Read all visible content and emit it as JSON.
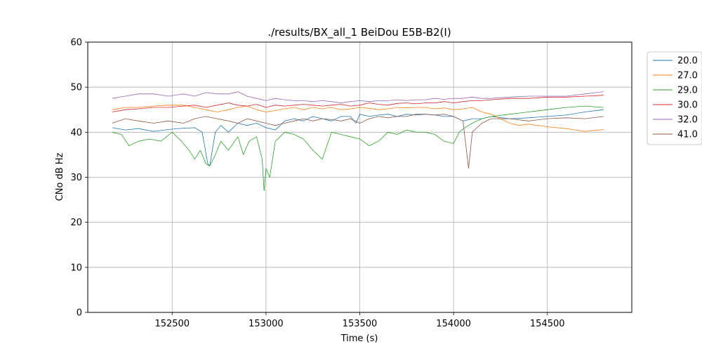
{
  "chart_data": {
    "type": "line",
    "title": "./results/BX_all_1 BeiDou E5B-B2(I)",
    "xlabel": "Time (s)",
    "ylabel": "CNo dB Hz",
    "xlim": [
      152050,
      154950
    ],
    "ylim": [
      0,
      60
    ],
    "xticks": [
      152500,
      153000,
      153500,
      154000,
      154500
    ],
    "yticks": [
      0,
      10,
      20,
      30,
      40,
      50,
      60
    ],
    "grid": true,
    "legend_position": "right-outside",
    "series": [
      {
        "name": "20.0",
        "color": "#1f77b4",
        "x": [
          152180,
          152250,
          152320,
          152400,
          152480,
          152560,
          152620,
          152660,
          152690,
          152700,
          152730,
          152760,
          152800,
          152850,
          152900,
          152950,
          153000,
          153050,
          153100,
          153150,
          153200,
          153250,
          153300,
          153350,
          153400,
          153450,
          153480,
          153500,
          153550,
          153600,
          153650,
          153700,
          153750,
          153800,
          153850,
          153900,
          153950,
          154000,
          154050,
          154100,
          154150,
          154200,
          154300,
          154400,
          154500,
          154600,
          154700,
          154800
        ],
        "y": [
          41.0,
          40.5,
          40.8,
          40.2,
          40.6,
          40.9,
          41.0,
          40.0,
          33.0,
          32.5,
          40.0,
          41.5,
          40.0,
          42.0,
          41.5,
          42.0,
          41.0,
          40.5,
          42.5,
          43.0,
          42.5,
          43.5,
          43.0,
          42.5,
          43.5,
          43.5,
          42.0,
          44.0,
          43.5,
          43.8,
          44.0,
          43.5,
          44.0,
          43.8,
          44.0,
          43.8,
          43.5,
          43.5,
          42.5,
          43.0,
          43.0,
          43.5,
          43.0,
          43.2,
          43.5,
          43.8,
          44.5,
          45.0
        ]
      },
      {
        "name": "27.0",
        "color": "#ff7f0e",
        "x": [
          152180,
          152250,
          152320,
          152400,
          152480,
          152560,
          152620,
          152680,
          152740,
          152800,
          152850,
          152900,
          152950,
          153000,
          153050,
          153100,
          153150,
          153200,
          153250,
          153300,
          153350,
          153400,
          153450,
          153500,
          153550,
          153600,
          153650,
          153700,
          153750,
          153800,
          153850,
          153900,
          153950,
          154000,
          154050,
          154100,
          154150,
          154200,
          154250,
          154300,
          154350,
          154400,
          154450,
          154500,
          154550,
          154600,
          154650,
          154700,
          154750,
          154800
        ],
        "y": [
          45.0,
          45.5,
          45.5,
          45.8,
          46.0,
          46.0,
          45.5,
          45.0,
          44.5,
          45.0,
          45.5,
          45.8,
          45.0,
          44.5,
          44.8,
          45.2,
          45.5,
          45.0,
          45.5,
          45.2,
          45.5,
          45.0,
          45.2,
          45.5,
          45.3,
          45.0,
          45.2,
          45.5,
          45.4,
          45.5,
          45.5,
          45.2,
          45.4,
          45.0,
          45.2,
          45.5,
          44.5,
          44.0,
          43.0,
          42.0,
          41.5,
          41.8,
          41.5,
          41.2,
          41.0,
          40.8,
          40.5,
          40.2,
          40.4,
          40.6
        ]
      },
      {
        "name": "29.0",
        "color": "#2ca02c",
        "x": [
          152180,
          152230,
          152270,
          152320,
          152380,
          152440,
          152500,
          152550,
          152590,
          152620,
          152650,
          152680,
          152700,
          152730,
          152760,
          152800,
          152850,
          152880,
          152910,
          152950,
          152980,
          152990,
          153000,
          153020,
          153050,
          153100,
          153150,
          153200,
          153250,
          153300,
          153350,
          153400,
          153450,
          153500,
          153550,
          153600,
          153650,
          153700,
          153750,
          153800,
          153850,
          153900,
          153950,
          154000,
          154030,
          154060,
          154100,
          154150,
          154200,
          154300,
          154400,
          154500,
          154600,
          154700,
          154800
        ],
        "y": [
          40.0,
          39.5,
          37.0,
          38.0,
          38.5,
          38.0,
          40.0,
          38.0,
          36.0,
          34.0,
          36.0,
          33.0,
          32.5,
          35.0,
          38.0,
          36.0,
          39.0,
          35.0,
          38.0,
          39.0,
          34.0,
          27.0,
          32.0,
          30.0,
          38.0,
          40.0,
          39.5,
          38.5,
          36.0,
          34.0,
          40.0,
          39.5,
          39.0,
          38.5,
          37.0,
          38.0,
          40.0,
          39.5,
          40.5,
          40.0,
          40.0,
          39.5,
          38.0,
          37.5,
          40.0,
          41.0,
          42.0,
          43.0,
          43.5,
          44.0,
          44.5,
          45.0,
          45.5,
          45.8,
          45.5
        ]
      },
      {
        "name": "30.0",
        "color": "#d62728",
        "x": [
          152180,
          152250,
          152320,
          152400,
          152480,
          152560,
          152620,
          152680,
          152740,
          152800,
          152850,
          152900,
          152950,
          153000,
          153050,
          153100,
          153150,
          153200,
          153250,
          153300,
          153350,
          153400,
          153450,
          153500,
          153550,
          153600,
          153650,
          153700,
          153750,
          153800,
          153850,
          153900,
          153950,
          154000,
          154050,
          154100,
          154150,
          154200,
          154300,
          154400,
          154500,
          154600,
          154700,
          154800
        ],
        "y": [
          44.5,
          45.0,
          45.2,
          45.5,
          45.5,
          45.8,
          46.0,
          45.5,
          46.0,
          46.5,
          46.0,
          45.8,
          46.2,
          45.5,
          46.0,
          45.8,
          46.0,
          46.2,
          46.0,
          45.8,
          46.0,
          46.2,
          45.8,
          46.0,
          46.5,
          46.2,
          46.0,
          46.4,
          46.5,
          46.3,
          46.5,
          46.5,
          46.8,
          46.5,
          46.8,
          47.0,
          47.0,
          47.2,
          47.5,
          47.5,
          47.8,
          47.8,
          48.0,
          48.2
        ]
      },
      {
        "name": "32.0",
        "color": "#9467bd",
        "x": [
          152180,
          152250,
          152320,
          152400,
          152480,
          152560,
          152620,
          152680,
          152740,
          152800,
          152850,
          152900,
          152950,
          153000,
          153050,
          153100,
          153150,
          153200,
          153250,
          153300,
          153350,
          153400,
          153450,
          153500,
          153550,
          153600,
          153650,
          153700,
          153750,
          153800,
          153850,
          153900,
          153950,
          154000,
          154050,
          154100,
          154150,
          154200,
          154300,
          154400,
          154500,
          154600,
          154700,
          154800
        ],
        "y": [
          47.5,
          48.0,
          48.5,
          48.5,
          48.0,
          48.5,
          48.0,
          48.8,
          48.5,
          48.5,
          49.0,
          48.0,
          47.5,
          47.0,
          47.5,
          47.2,
          47.0,
          47.0,
          46.8,
          47.0,
          46.8,
          46.5,
          46.8,
          47.0,
          46.8,
          47.0,
          47.0,
          47.2,
          47.0,
          47.2,
          47.2,
          47.5,
          47.3,
          47.5,
          47.5,
          47.8,
          47.5,
          47.5,
          47.8,
          48.0,
          48.0,
          48.0,
          48.5,
          49.0
        ]
      },
      {
        "name": "41.0",
        "color": "#8c564b",
        "x": [
          152180,
          152250,
          152320,
          152400,
          152480,
          152560,
          152620,
          152680,
          152740,
          152800,
          152850,
          152900,
          152950,
          153000,
          153050,
          153100,
          153150,
          153200,
          153250,
          153300,
          153350,
          153400,
          153450,
          153500,
          153550,
          153600,
          153650,
          153700,
          153750,
          153800,
          153850,
          153900,
          153950,
          154000,
          154050,
          154080,
          154100,
          154150,
          154200,
          154300,
          154400,
          154500,
          154600,
          154700,
          154800
        ],
        "y": [
          42.0,
          43.0,
          42.5,
          42.0,
          42.5,
          42.0,
          43.0,
          43.5,
          43.0,
          42.5,
          42.0,
          43.0,
          42.5,
          42.0,
          41.5,
          42.0,
          42.5,
          43.0,
          42.5,
          43.0,
          42.8,
          42.5,
          43.0,
          42.0,
          43.0,
          43.5,
          43.2,
          43.5,
          43.5,
          44.0,
          44.0,
          43.8,
          44.0,
          43.5,
          42.5,
          32.0,
          40.0,
          42.0,
          43.0,
          43.0,
          42.5,
          43.0,
          43.2,
          43.0,
          43.5
        ]
      }
    ]
  }
}
